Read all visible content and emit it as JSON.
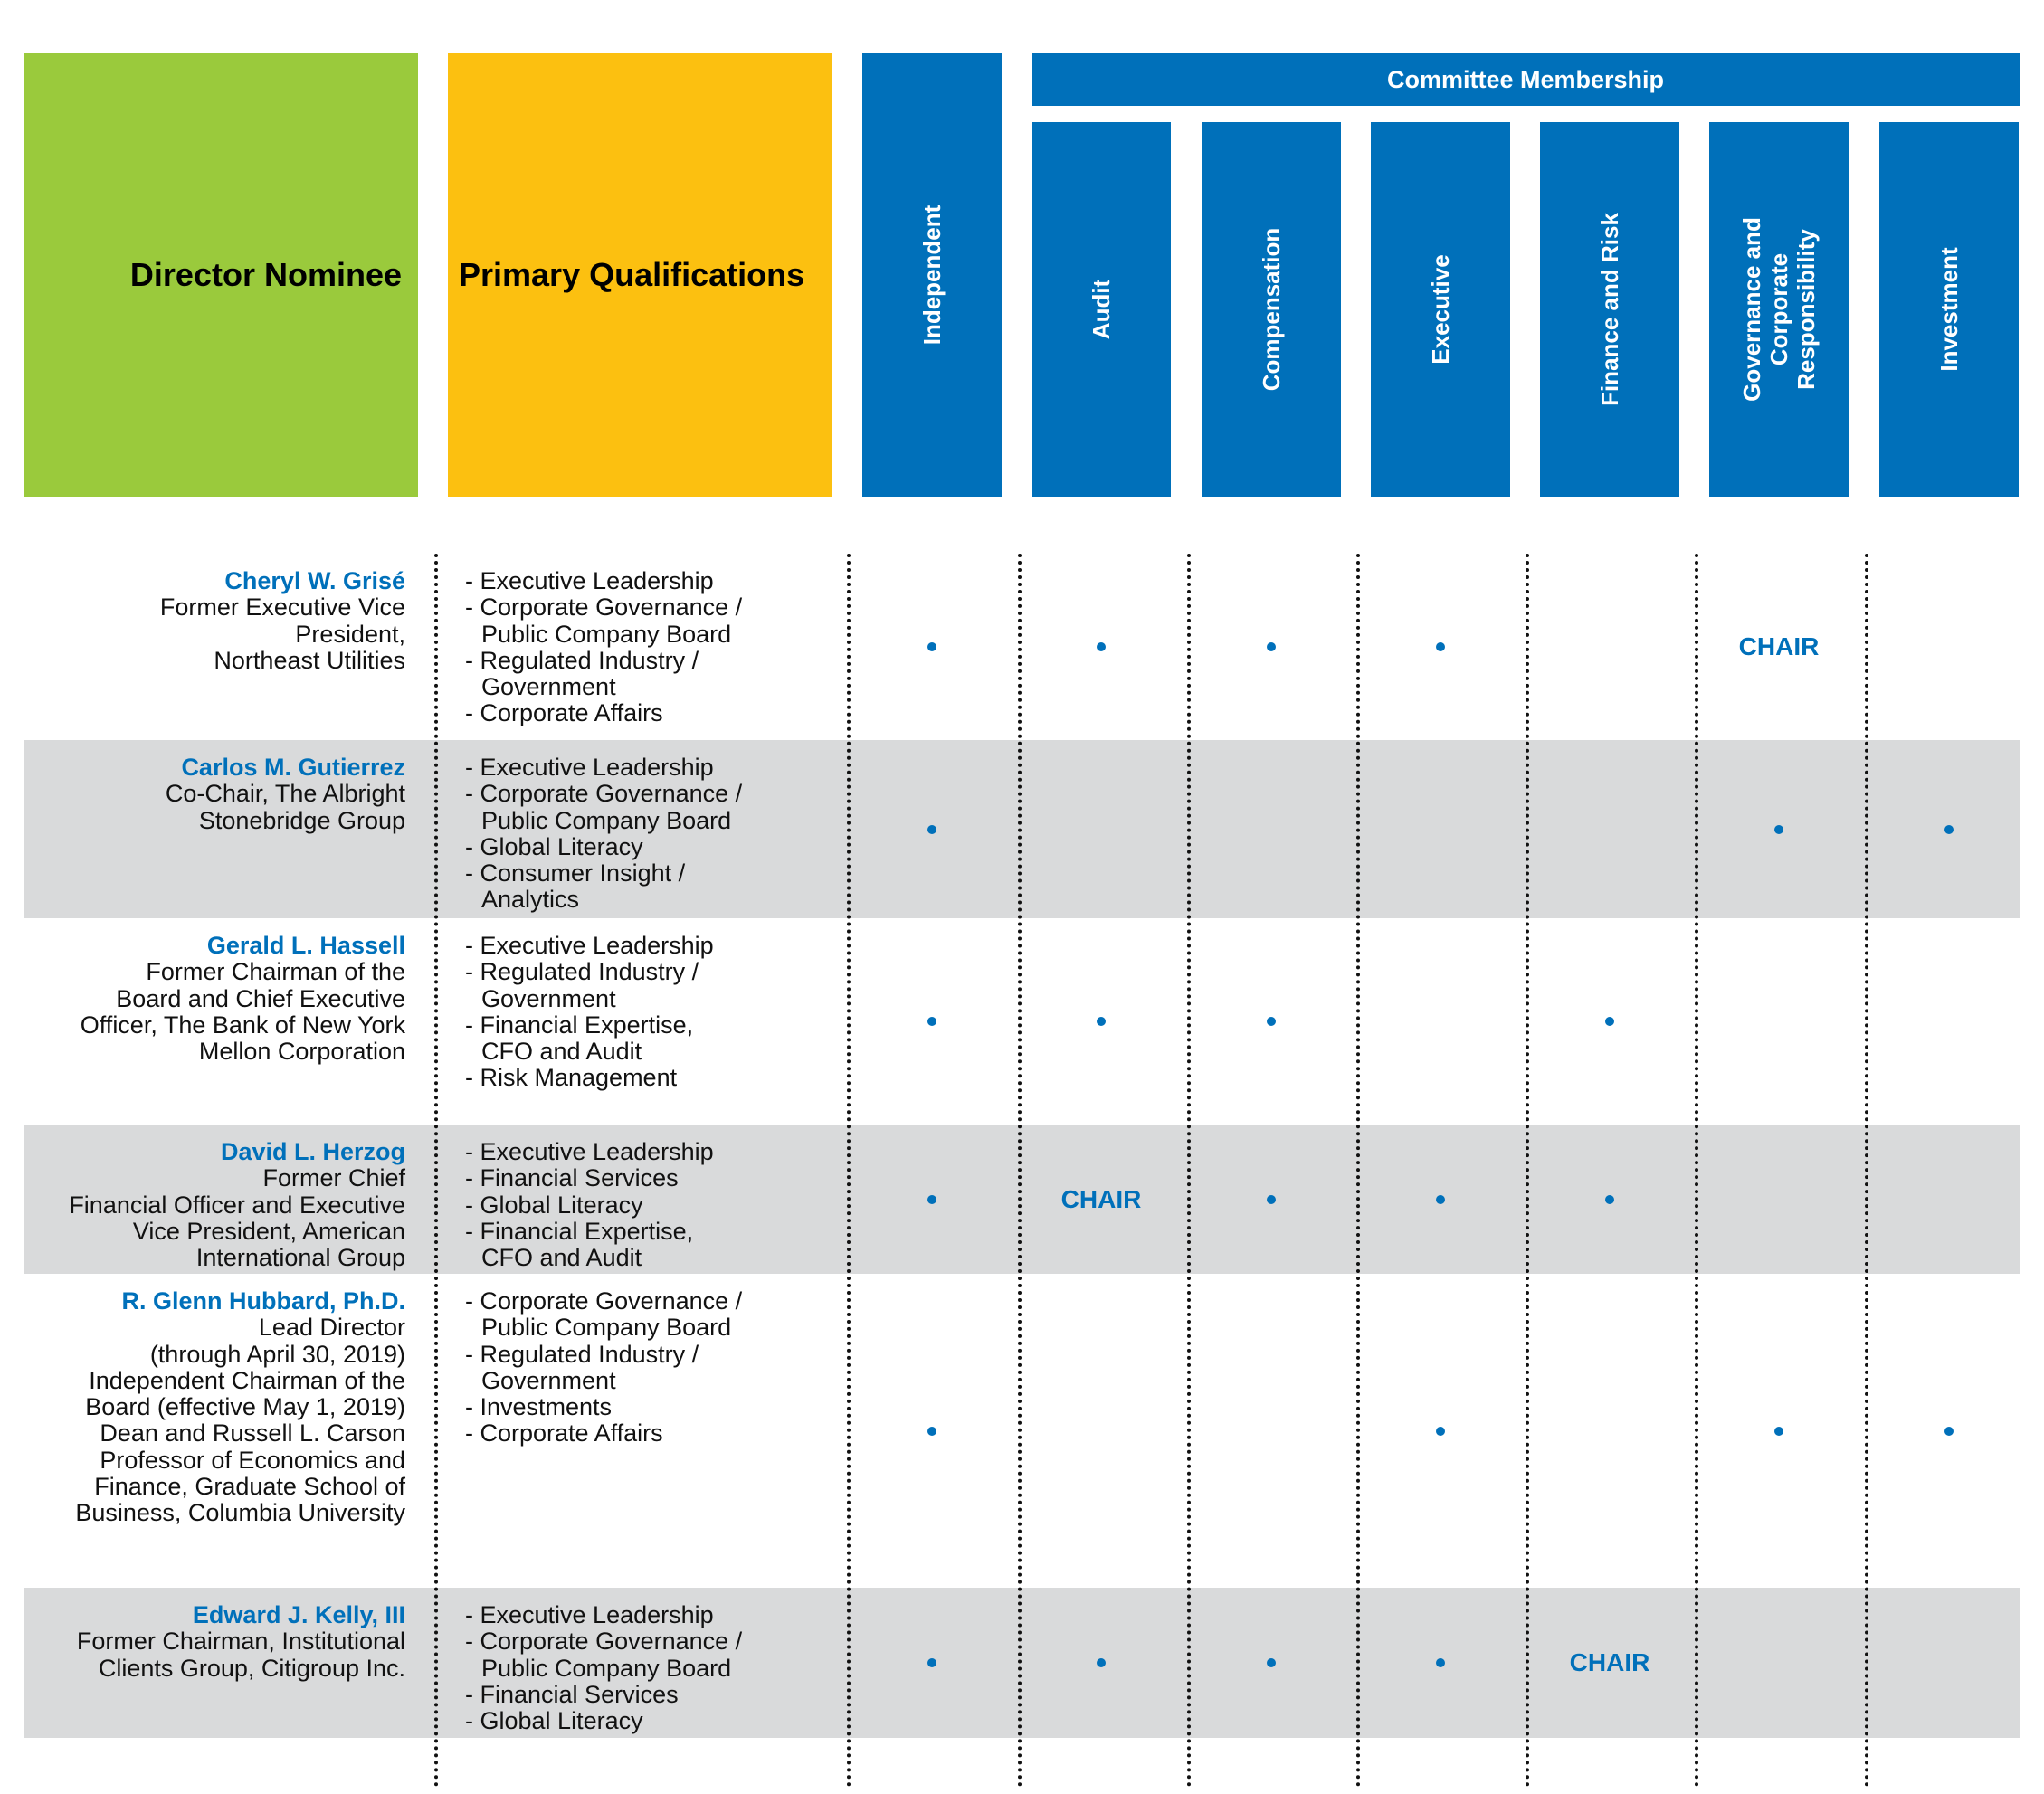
{
  "header": {
    "director_nominee": "Director Nominee",
    "primary_qualifications": "Primary Qualifications",
    "committee_membership": "Committee Membership",
    "columns": [
      "Independent",
      "Audit",
      "Compensation",
      "Executive",
      "Finance and Risk",
      "Governance and  Corporate Responsibility",
      "Investment"
    ]
  },
  "colors": {
    "green": "#9aca3c",
    "yellow": "#fcc010",
    "blue": "#0070ba",
    "row_gray": "#d9dadb"
  },
  "directors": [
    {
      "name": "Cheryl W. Grisé",
      "title_lines": [
        "Former Executive Vice",
        "President,",
        "Northeast Utilities"
      ],
      "qualifications": [
        [
          "Executive Leadership"
        ],
        [
          "Corporate Governance /",
          "Public Company Board"
        ],
        [
          "Regulated Industry /",
          "Government"
        ],
        [
          "Corporate Affairs"
        ]
      ],
      "membership": [
        "dot",
        "dot",
        "dot",
        "dot",
        "",
        "CHAIR",
        ""
      ]
    },
    {
      "name": "Carlos M. Gutierrez",
      "title_lines": [
        "Co-Chair, The Albright",
        "Stonebridge Group"
      ],
      "qualifications": [
        [
          "Executive Leadership"
        ],
        [
          "Corporate Governance /",
          "Public Company Board"
        ],
        [
          "Global Literacy"
        ],
        [
          "Consumer Insight /",
          "Analytics"
        ]
      ],
      "membership": [
        "dot",
        "",
        "",
        "",
        "",
        "dot",
        "dot"
      ]
    },
    {
      "name": "Gerald L. Hassell",
      "title_lines": [
        "Former Chairman of the",
        "Board and Chief Executive",
        "Officer, The Bank of New York",
        "Mellon Corporation"
      ],
      "qualifications": [
        [
          "Executive Leadership"
        ],
        [
          "Regulated Industry /",
          "Government"
        ],
        [
          "Financial Expertise,",
          "CFO and Audit"
        ],
        [
          "Risk Management"
        ]
      ],
      "membership": [
        "dot",
        "dot",
        "dot",
        "",
        "dot",
        "",
        ""
      ]
    },
    {
      "name": "David L. Herzog",
      "title_lines": [
        "Former Chief",
        "Financial Officer and Executive",
        "Vice President, American",
        "International Group"
      ],
      "qualifications": [
        [
          "Executive Leadership"
        ],
        [
          "Financial Services"
        ],
        [
          "Global Literacy"
        ],
        [
          "Financial Expertise,",
          "CFO and Audit"
        ]
      ],
      "membership": [
        "dot",
        "CHAIR",
        "dot",
        "dot",
        "dot",
        "",
        ""
      ]
    },
    {
      "name": "R. Glenn Hubbard,  Ph.D.",
      "title_lines": [
        "Lead Director ",
        "(through April 30, 2019)",
        "Independent Chairman of the ",
        "Board (effective May 1, 2019)",
        "Dean and Russell L. Carson",
        "Professor of Economics and",
        "Finance, Graduate School of",
        "Business, Columbia University"
      ],
      "qualifications": [
        [
          "Corporate Governance /",
          "Public Company Board"
        ],
        [
          "Regulated Industry /",
          "Government"
        ],
        [
          "Investments"
        ],
        [
          "Corporate Affairs"
        ]
      ],
      "membership": [
        "dot",
        "",
        "",
        "dot",
        "",
        "dot",
        "dot"
      ]
    },
    {
      "name": "Edward J. Kelly, III",
      "title_lines": [
        "Former Chairman, Institutional",
        "Clients Group, Citigroup Inc."
      ],
      "qualifications": [
        [
          "Executive Leadership"
        ],
        [
          "Corporate Governance /",
          "Public Company Board"
        ],
        [
          "Financial Services"
        ],
        [
          "Global Literacy"
        ]
      ],
      "membership": [
        "dot",
        "dot",
        "dot",
        "dot",
        "CHAIR",
        "",
        ""
      ]
    }
  ]
}
